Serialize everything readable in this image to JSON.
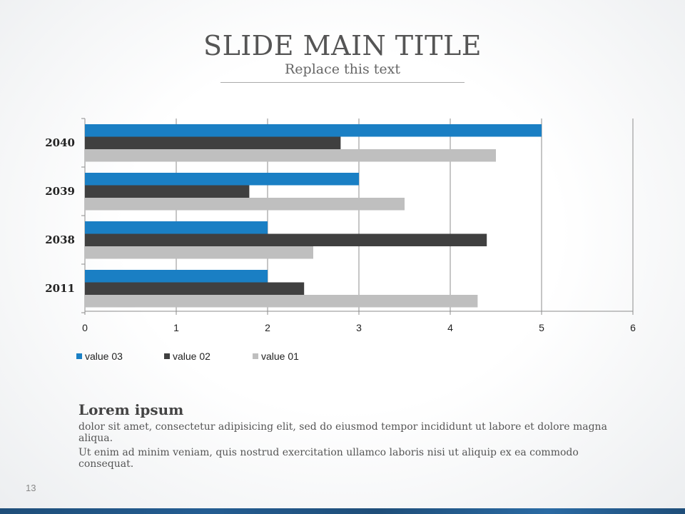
{
  "slide": {
    "title": "SLIDE MAIN TITLE",
    "subtitle": "Replace this text",
    "page_number": "13"
  },
  "body_text": {
    "heading": "Lorem ipsum",
    "paragraphs": [
      "dolor sit amet, consectetur adipisicing elit, sed do eiusmod tempor incididunt ut labore et dolore magna aliqua.",
      "Ut enim ad minim veniam, quis nostrud exercitation ullamco laboris nisi ut aliquip ex ea commodo consequat."
    ]
  },
  "chart_data": {
    "type": "bar",
    "orientation": "horizontal",
    "categories": [
      "2040",
      "2039",
      "2038",
      "2011"
    ],
    "series": [
      {
        "name": "value 03",
        "color": "#1a7fc4",
        "values": [
          5,
          3,
          2,
          2
        ]
      },
      {
        "name": "value 02",
        "color": "#404040",
        "values": [
          2.8,
          1.8,
          4.4,
          2.4
        ]
      },
      {
        "name": "value 01",
        "color": "#bfbfbf",
        "values": [
          4.5,
          3.5,
          2.5,
          4.3
        ]
      }
    ],
    "xlim": [
      0,
      6
    ],
    "x_ticks": [
      "0",
      "1",
      "2",
      "3",
      "4",
      "5",
      "6"
    ],
    "grid": true,
    "legend_position": "bottom-left"
  }
}
